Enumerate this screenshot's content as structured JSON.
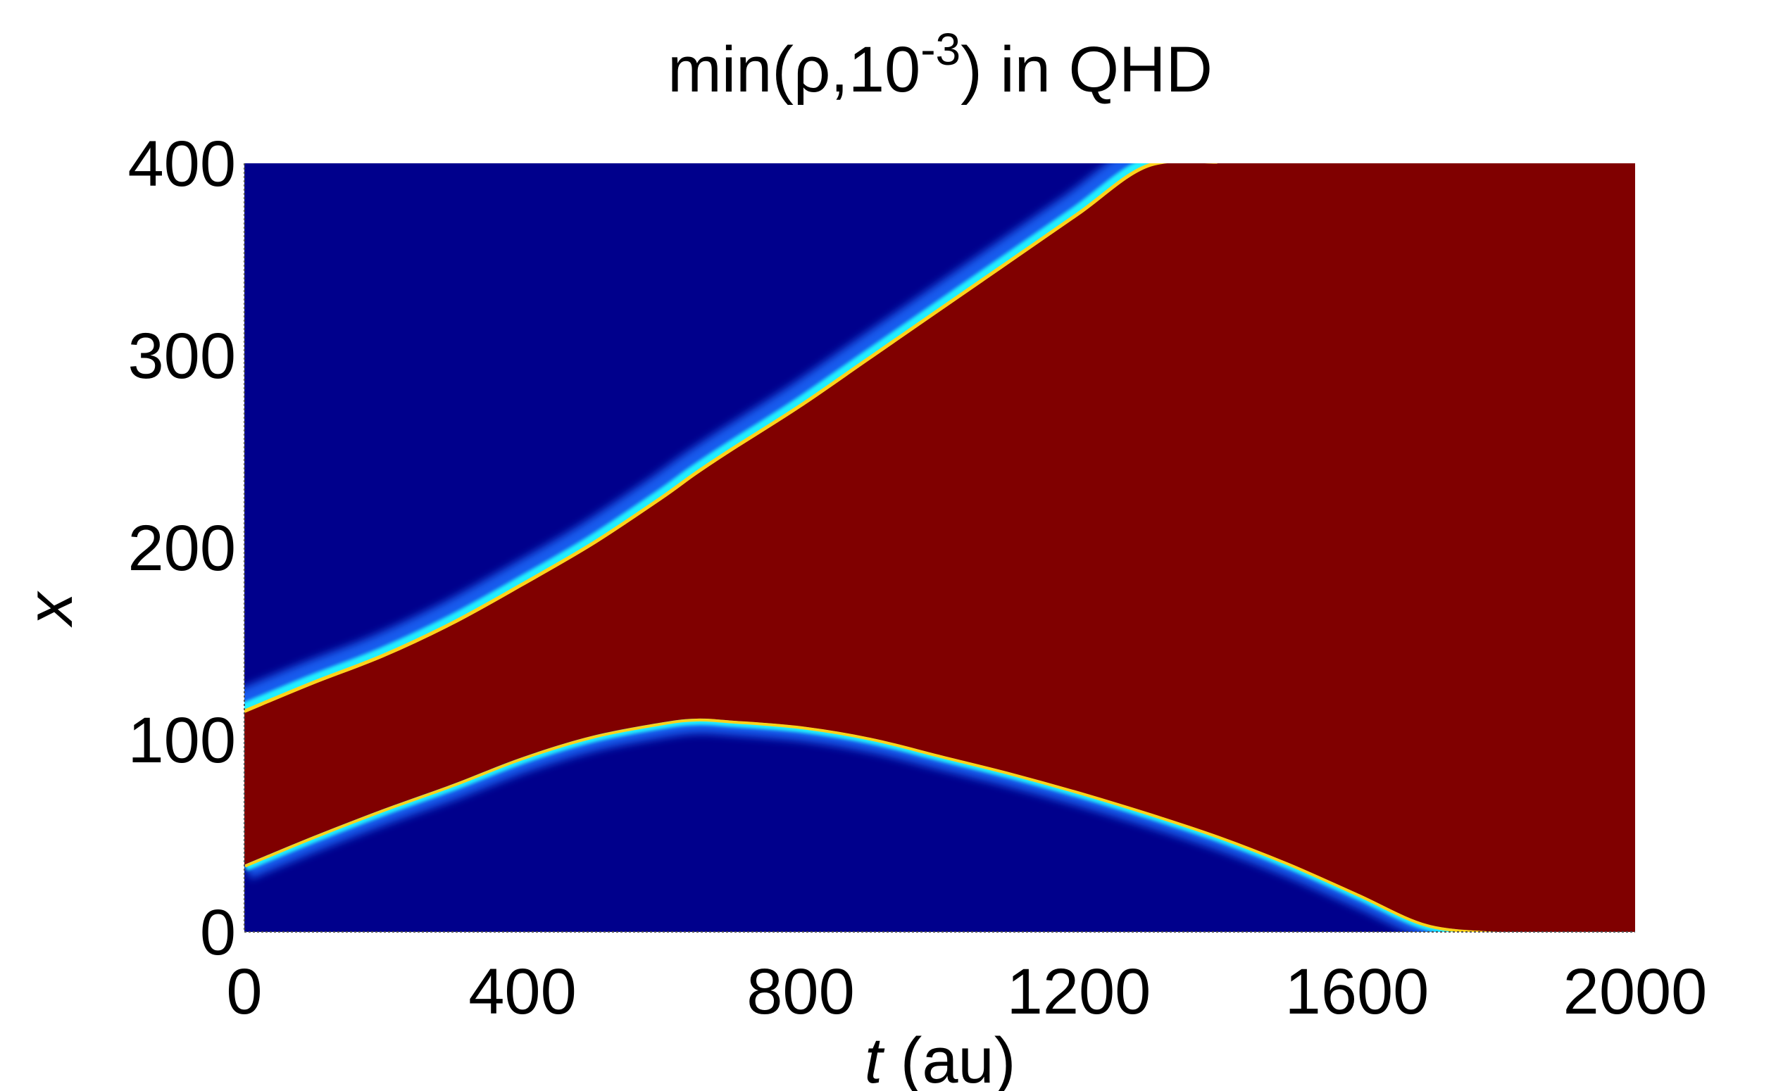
{
  "chart_data": {
    "type": "heatmap",
    "title_main": "min(ρ,10",
    "title_exp": "-3",
    "title_tail": ") in QHD",
    "xlabel_var": "t",
    "xlabel_unit": " (au)",
    "ylabel": "x",
    "xlim": [
      0,
      2000
    ],
    "ylim": [
      0,
      400
    ],
    "xticks": [
      0,
      400,
      800,
      1200,
      1600,
      2000
    ],
    "yticks": [
      0,
      100,
      200,
      300,
      400
    ],
    "background_color": "#00008c",
    "fill_color": "#800000",
    "upper_front": {
      "t": [
        0,
        100,
        200,
        300,
        400,
        500,
        600,
        650,
        700,
        800,
        900,
        1000,
        1100,
        1200,
        1300,
        1400
      ],
      "x": [
        114,
        129,
        143,
        160,
        180,
        201,
        225,
        238,
        250,
        273,
        298,
        323,
        348,
        373,
        398,
        400
      ]
    },
    "lower_front": {
      "t": [
        0,
        100,
        200,
        300,
        400,
        500,
        600,
        650,
        700,
        800,
        900,
        1000,
        1100,
        1200,
        1300,
        1400,
        1500,
        1600,
        1700,
        1800
      ],
      "x": [
        35,
        50,
        64,
        77,
        91,
        102,
        109,
        111,
        110,
        107,
        101,
        92,
        83,
        73,
        62,
        50,
        36,
        20,
        4,
        0
      ]
    }
  }
}
